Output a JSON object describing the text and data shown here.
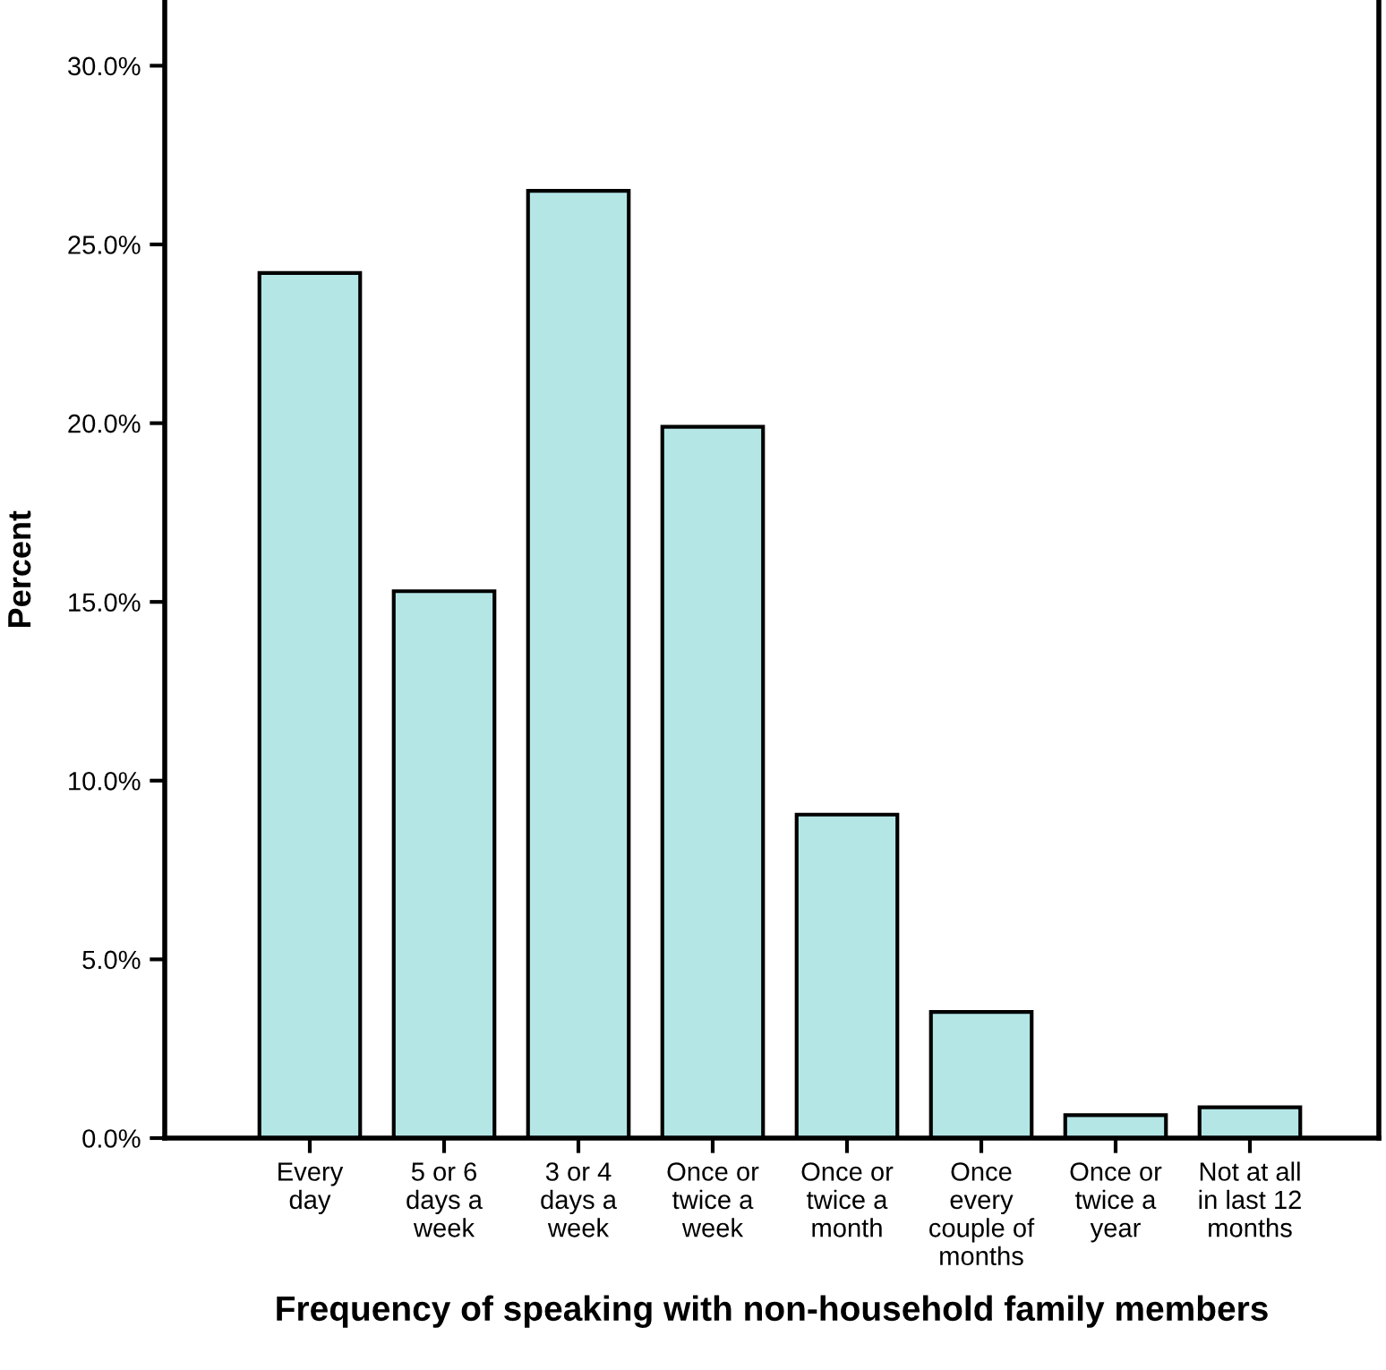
{
  "chart_data": {
    "type": "bar",
    "xlabel": "Frequency of speaking with non-household family members",
    "ylabel": "Percent",
    "categories": [
      "Every\nday",
      "5 or 6\ndays a\nweek",
      "3 or 4\ndays a\nweek",
      "Once or\ntwice a\nweek",
      "Once or\ntwice a\nmonth",
      "Once\nevery\ncouple of\nmonths",
      "Once or\ntwice a\nyear",
      "Not at all\nin last 12\nmonths"
    ],
    "values": [
      24.2,
      15.3,
      26.5,
      19.9,
      9.05,
      3.53,
      0.64,
      0.86
    ],
    "color": "#b4e6e6",
    "ylim": [
      0,
      31.8
    ],
    "yticks": [
      {
        "value": 0,
        "label": "0.0%"
      },
      {
        "value": 5,
        "label": "5.0%"
      },
      {
        "value": 10,
        "label": "10.0%"
      },
      {
        "value": 15,
        "label": "15.0%"
      },
      {
        "value": 20,
        "label": "20.0%"
      },
      {
        "value": 25,
        "label": "25.0%"
      },
      {
        "value": 30,
        "label": "30.0%"
      }
    ],
    "grid": false,
    "legend": false
  }
}
